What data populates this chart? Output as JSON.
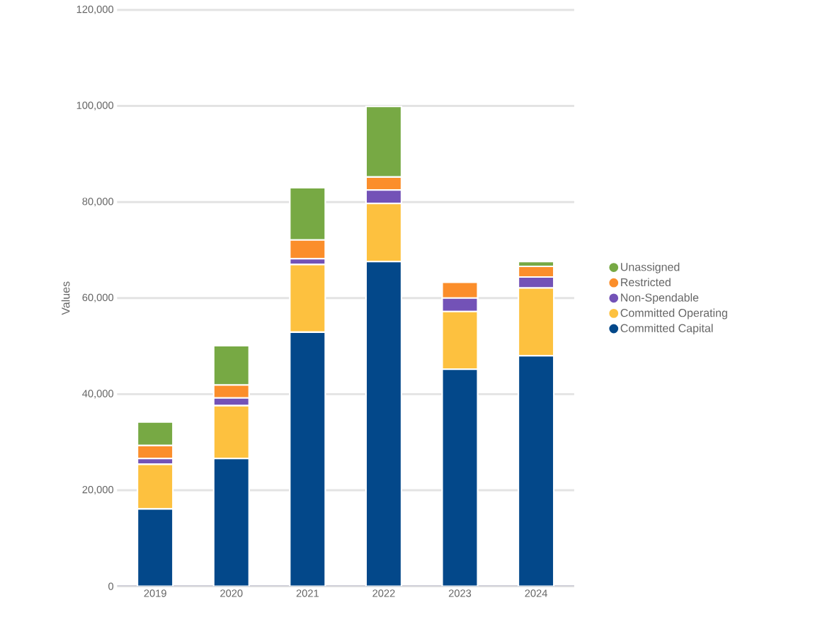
{
  "chart_data": {
    "type": "bar",
    "stacked": true,
    "ylabel": "Values",
    "categories": [
      "2019",
      "2020",
      "2021",
      "2022",
      "2023",
      "2024"
    ],
    "series": [
      {
        "name": "Committed Capital",
        "color": "#03488a",
        "values": [
          16100,
          26600,
          52900,
          67600,
          45200,
          48000
        ]
      },
      {
        "name": "Committed Operating",
        "color": "#fdc13f",
        "values": [
          9300,
          11000,
          14100,
          12100,
          12000,
          14100
        ]
      },
      {
        "name": "Non-Spendable",
        "color": "#7352b7",
        "values": [
          1200,
          1600,
          1200,
          2800,
          2800,
          2300
        ]
      },
      {
        "name": "Restricted",
        "color": "#fb8e2b",
        "values": [
          2700,
          2700,
          3900,
          2700,
          3300,
          2200
        ]
      },
      {
        "name": "Unassigned",
        "color": "#77a944",
        "values": [
          4900,
          8200,
          10900,
          14700,
          null,
          1000
        ]
      }
    ],
    "ylim": [
      0,
      120000
    ],
    "yticks": [
      0,
      {
        "value": 20000,
        "label": "20,000"
      },
      {
        "value": 40000,
        "label": "40,000"
      },
      {
        "value": 60000,
        "label": "60,000"
      },
      {
        "value": 80000,
        "label": "80,000"
      },
      {
        "value": 100000,
        "label": "100,000"
      },
      {
        "value": 120000,
        "label": "120,000"
      }
    ],
    "grid": "y",
    "legend": "right"
  }
}
